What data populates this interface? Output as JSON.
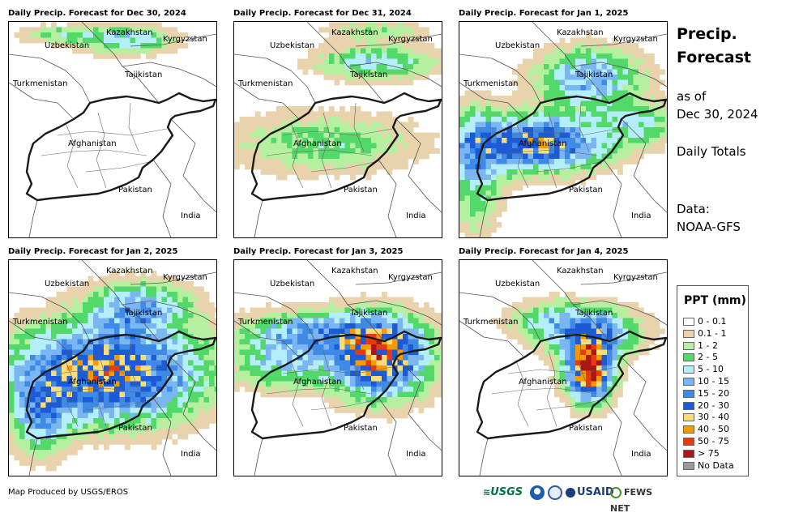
{
  "panels": [
    {
      "title": "Daily Precip. Forecast for Dec 30, 2024",
      "day": 0
    },
    {
      "title": "Daily Precip. Forecast for Dec 31, 2024",
      "day": 1
    },
    {
      "title": "Daily Precip. Forecast for Jan 1, 2025",
      "day": 2
    },
    {
      "title": "Daily Precip. Forecast for Jan 2, 2025",
      "day": 3
    },
    {
      "title": "Daily Precip. Forecast for Jan 3, 2025",
      "day": 4
    },
    {
      "title": "Daily Precip. Forecast for Jan 4, 2025",
      "day": 5
    }
  ],
  "map_labels": {
    "kazakhstan": "Kazakhstan",
    "kyrgyzstan": "Kyrgyzstan",
    "uzbekistan": "Uzbekistan",
    "tajikistan": "Tajikistan",
    "turkmenistan": "Turkmenistan",
    "afghanistan": "Afghanistan",
    "pakistan": "Pakistan",
    "india": "India"
  },
  "side": {
    "title_line1": "Precip.",
    "title_line2": "Forecast",
    "asof_line1": "as of",
    "asof_line2": "Dec 30, 2024",
    "daily": "Daily Totals",
    "data_line1": "Data:",
    "data_line2": "NOAA-GFS"
  },
  "legend": {
    "title": "PPT (mm)",
    "items": [
      {
        "label": "0 - 0.1",
        "color": "#ffffff"
      },
      {
        "label": "0.1 - 1",
        "color": "#e8d3ad"
      },
      {
        "label": "1 - 2",
        "color": "#b4f0a0"
      },
      {
        "label": "2 - 5",
        "color": "#52d96a"
      },
      {
        "label": "5 - 10",
        "color": "#b4eefa"
      },
      {
        "label": "10 - 15",
        "color": "#7ab7f2"
      },
      {
        "label": "15 - 20",
        "color": "#3e8ae6"
      },
      {
        "label": "20 - 30",
        "color": "#1c5ad6"
      },
      {
        "label": "30 - 40",
        "color": "#f8de78"
      },
      {
        "label": "40 - 50",
        "color": "#f59b00"
      },
      {
        "label": "50 - 75",
        "color": "#e83a0c"
      },
      {
        "label": "> 75",
        "color": "#a81616"
      },
      {
        "label": "No Data",
        "color": "#9a9a9a"
      }
    ]
  },
  "footer": "Map Produced by USGS/EROS",
  "logos": {
    "usgs": "USGS",
    "usaid": "USAID",
    "fewsnet": "FEWS NET"
  }
}
